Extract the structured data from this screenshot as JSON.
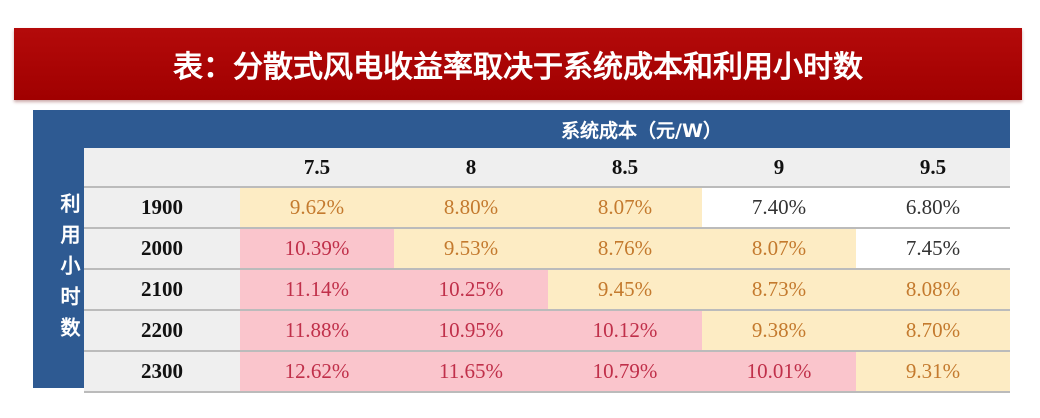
{
  "title": "表：分散式风电收益率取决于系统成本和利用小时数",
  "chart_data": {
    "type": "table",
    "column_group_label": "系统成本（元/W）",
    "row_group_label": "利用小时数",
    "columns": [
      "7.5",
      "8",
      "8.5",
      "9",
      "9.5"
    ],
    "rows": [
      {
        "label": "1900",
        "values": [
          "9.62%",
          "8.80%",
          "8.07%",
          "7.40%",
          "6.80%"
        ],
        "shades": [
          "Y",
          "Y",
          "Y",
          "W",
          "W"
        ]
      },
      {
        "label": "2000",
        "values": [
          "10.39%",
          "9.53%",
          "8.76%",
          "8.07%",
          "7.45%"
        ],
        "shades": [
          "P",
          "Y",
          "Y",
          "Y",
          "W"
        ]
      },
      {
        "label": "2100",
        "values": [
          "11.14%",
          "10.25%",
          "9.45%",
          "8.73%",
          "8.08%"
        ],
        "shades": [
          "P",
          "P",
          "Y",
          "Y",
          "Y"
        ]
      },
      {
        "label": "2200",
        "values": [
          "11.88%",
          "10.95%",
          "10.12%",
          "9.38%",
          "8.70%"
        ],
        "shades": [
          "P",
          "P",
          "P",
          "Y",
          "Y"
        ]
      },
      {
        "label": "2300",
        "values": [
          "12.62%",
          "11.65%",
          "10.79%",
          "10.01%",
          "9.31%"
        ],
        "shades": [
          "P",
          "P",
          "P",
          "P",
          "Y"
        ]
      }
    ],
    "colors": {
      "title_bg": "#a00000",
      "frame": "#2e5a92",
      "Y": "#fdecc4",
      "P": "#fac5cc",
      "W": "#ffffff"
    }
  }
}
